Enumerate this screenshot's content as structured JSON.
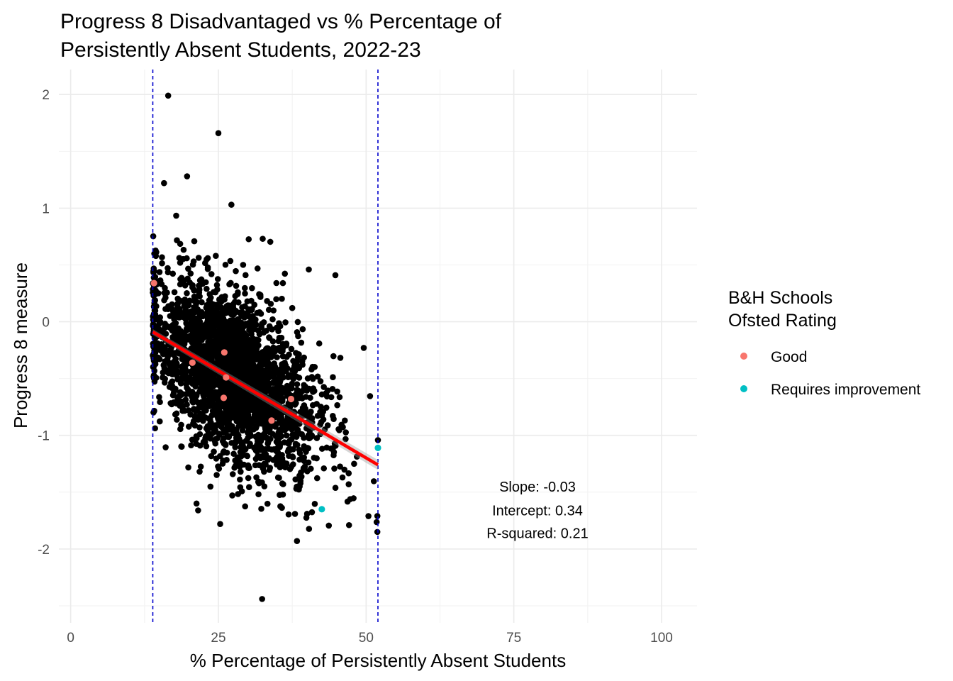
{
  "chart_data": {
    "type": "scatter",
    "title_lines": [
      "Progress 8 Disadvantaged vs % Percentage of",
      "Persistently Absent Students, 2022-23"
    ],
    "xlabel": "% Percentage of Persistently Absent Students",
    "ylabel": "Progress 8 measure",
    "xlim": [
      -2,
      106
    ],
    "ylim": [
      -2.65,
      2.22
    ],
    "x_ticks": [
      0,
      25,
      50,
      75,
      100
    ],
    "y_ticks": [
      -2,
      -1,
      0,
      1,
      2
    ],
    "grid": true,
    "legend": {
      "title_lines": [
        "B&H Schools",
        "Ofsted Rating"
      ],
      "placement": "right",
      "entries": [
        {
          "label": "Good",
          "color": "#F8766D"
        },
        {
          "label": "Requires improvement",
          "color": "#00BFC4"
        }
      ]
    },
    "vlines": [
      13.9,
      52.0
    ],
    "vline_color": "#0000CC",
    "regression": {
      "slope": -0.03,
      "intercept": 0.34,
      "x_start": 13.9,
      "x_end": 52.0,
      "y_start": -0.09,
      "y_end": -1.26,
      "color": "#FF0000"
    },
    "annotation": {
      "x": 79,
      "lines": [
        "Slope: -0.03",
        "Intercept: 0.34",
        "R-squared: 0.21"
      ],
      "y": [
        -1.45,
        -1.66,
        -1.86
      ]
    },
    "background_points": {
      "count": 2600,
      "x_range": [
        13.9,
        52.0
      ],
      "color": "#000000",
      "notable": [
        {
          "x": 16.5,
          "y": 1.99
        },
        {
          "x": 25,
          "y": 1.66
        },
        {
          "x": 19.7,
          "y": 1.28
        },
        {
          "x": 15.8,
          "y": 1.22
        },
        {
          "x": 27.2,
          "y": 1.03
        },
        {
          "x": 32.5,
          "y": 0.73
        },
        {
          "x": 40.3,
          "y": 0.46
        },
        {
          "x": 44.8,
          "y": 0.41
        },
        {
          "x": 49.6,
          "y": -0.23
        },
        {
          "x": 38.3,
          "y": -1.93
        },
        {
          "x": 32.4,
          "y": -2.44
        },
        {
          "x": 25.3,
          "y": -1.78
        },
        {
          "x": 51.9,
          "y": -1.85
        },
        {
          "x": 51.9,
          "y": -1.71
        },
        {
          "x": 21.3,
          "y": -1.6
        }
      ]
    },
    "series": [
      {
        "name": "Good",
        "color": "#F8766D",
        "points": [
          {
            "x": 14.1,
            "y": 0.34
          },
          {
            "x": 26.0,
            "y": -0.27
          },
          {
            "x": 20.6,
            "y": -0.36
          },
          {
            "x": 26.3,
            "y": -0.49
          },
          {
            "x": 25.9,
            "y": -0.67
          },
          {
            "x": 37.3,
            "y": -0.68
          },
          {
            "x": 34.0,
            "y": -0.87
          }
        ]
      },
      {
        "name": "Requires improvement",
        "color": "#00BFC4",
        "points": [
          {
            "x": 52.0,
            "y": -1.11
          },
          {
            "x": 42.5,
            "y": -1.65
          }
        ]
      }
    ]
  }
}
